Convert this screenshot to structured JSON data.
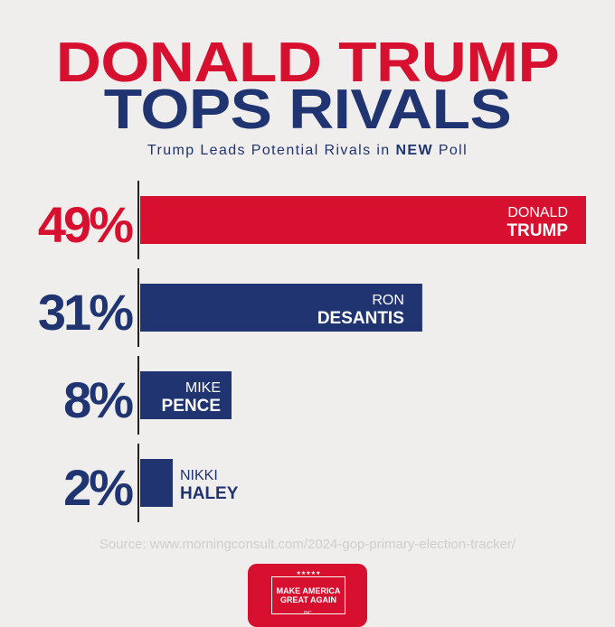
{
  "title_line1": "DONALD TRUMP",
  "title_line2": "TOPS RIVALS",
  "subtitle_pre": "Trump Leads Potential Rivals in ",
  "subtitle_bold": "NEW",
  "subtitle_post": " Poll",
  "source": "Source: www.morningconsult.com/2024-gop-primary-election-tracker/",
  "logo": {
    "stars": "★★★★★",
    "line1": "MAKE AMERICA",
    "line2": "GREAT AGAIN",
    "inc": "INC."
  },
  "colors": {
    "red": "#d7102f",
    "navy": "#1f3471",
    "background": "#efeeec"
  },
  "chart_data": {
    "type": "bar",
    "orientation": "horizontal",
    "categories": [
      "DONALD TRUMP",
      "RON DESANTIS",
      "MIKE PENCE",
      "NIKKI HALEY"
    ],
    "first_names": [
      "DONALD",
      "RON",
      "MIKE",
      "NIKKI"
    ],
    "last_names": [
      "TRUMP",
      "DESANTIS",
      "PENCE",
      "HALEY"
    ],
    "values": [
      49,
      31,
      8,
      2
    ],
    "value_labels": [
      "49%",
      "31%",
      "8%",
      "2%"
    ],
    "bar_colors": [
      "#d7102f",
      "#1f3471",
      "#1f3471",
      "#1f3471"
    ],
    "unit": "%",
    "grid": false,
    "legend": "none"
  }
}
